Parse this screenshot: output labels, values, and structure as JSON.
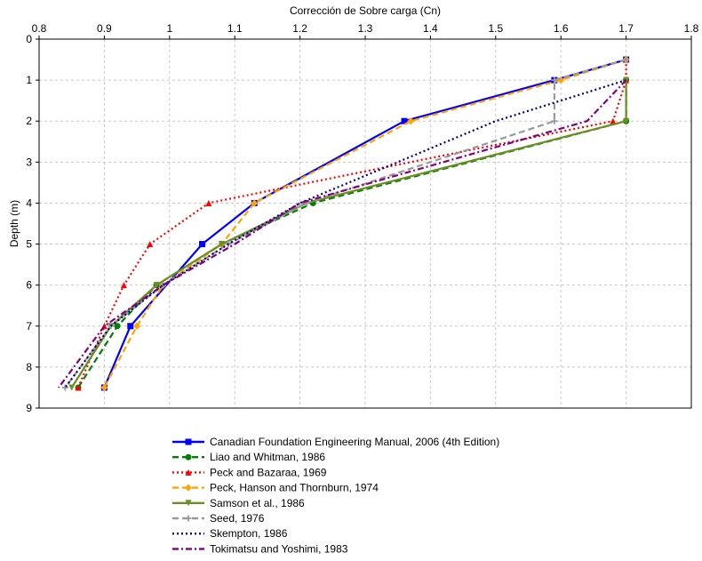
{
  "chart_data": {
    "type": "line",
    "xlabel": "Corrección de Sobre carga (Cn)",
    "ylabel": "Depth (m)",
    "xlim": [
      0.8,
      1.8
    ],
    "ylim": [
      0,
      9
    ],
    "x_axis_position": "top",
    "y_axis_inverted": true,
    "grid": true,
    "legend_position": "bottom",
    "xticks": [
      "0.8",
      "0.9",
      "1",
      "1.1",
      "1.2",
      "1.3",
      "1.4",
      "1.5",
      "1.6",
      "1.7",
      "1.8"
    ],
    "yticks": [
      "0",
      "1",
      "2",
      "3",
      "4",
      "5",
      "6",
      "7",
      "8",
      "9"
    ],
    "series": [
      {
        "name": "Canadian Foundation Engineering Manual, 2006 (4th Edition)",
        "color": "#0000ff",
        "dash": "solid",
        "marker": "square",
        "points": [
          [
            1.7,
            0.5
          ],
          [
            1.59,
            1.0
          ],
          [
            1.36,
            2.0
          ],
          [
            1.13,
            4.0
          ],
          [
            1.05,
            5.0
          ],
          [
            0.94,
            7.0
          ],
          [
            0.9,
            8.5
          ]
        ]
      },
      {
        "name": "Liao and Whitman, 1986",
        "color": "#008000",
        "dash": "dash",
        "marker": "circle",
        "points": [
          [
            1.7,
            1.0
          ],
          [
            1.7,
            2.0
          ],
          [
            1.22,
            4.0
          ],
          [
            1.08,
            5.0
          ],
          [
            0.98,
            6.0
          ],
          [
            0.92,
            7.0
          ],
          [
            0.86,
            8.5
          ]
        ]
      },
      {
        "name": "Peck and Bazaraa, 1969",
        "color": "#ff0000",
        "dash": "dot",
        "marker": "triangle",
        "points": [
          [
            1.7,
            0.5
          ],
          [
            1.7,
            1.0
          ],
          [
            1.68,
            2.0
          ],
          [
            1.06,
            4.0
          ],
          [
            0.97,
            5.0
          ],
          [
            0.93,
            6.0
          ],
          [
            0.9,
            7.0
          ],
          [
            0.86,
            8.5
          ]
        ]
      },
      {
        "name": "Peck, Hanson and Thornburn, 1974",
        "color": "#ffa500",
        "dash": "dash",
        "marker": "diamond",
        "points": [
          [
            1.7,
            0.5
          ],
          [
            1.6,
            1.0
          ],
          [
            1.37,
            2.0
          ],
          [
            1.13,
            4.0
          ],
          [
            1.08,
            5.0
          ],
          [
            0.99,
            6.0
          ],
          [
            0.95,
            7.0
          ],
          [
            0.9,
            8.5
          ]
        ]
      },
      {
        "name": "Samson et al., 1986",
        "color": "#6b8e23",
        "dash": "solid",
        "marker": "triangle-down",
        "points": [
          [
            1.7,
            1.0
          ],
          [
            1.7,
            2.0
          ],
          [
            1.21,
            4.0
          ],
          [
            1.08,
            5.0
          ],
          [
            0.98,
            6.0
          ],
          [
            0.91,
            7.0
          ],
          [
            0.85,
            8.5
          ]
        ]
      },
      {
        "name": "Seed, 1976",
        "color": "#999999",
        "dash": "dash",
        "marker": "plus",
        "points": [
          [
            1.7,
            0.5
          ],
          [
            1.59,
            1.0
          ],
          [
            1.59,
            2.0
          ],
          [
            1.21,
            4.0
          ],
          [
            1.09,
            5.0
          ],
          [
            0.99,
            6.0
          ],
          [
            0.91,
            7.0
          ],
          [
            0.84,
            8.5
          ]
        ]
      },
      {
        "name": "Skempton, 1986",
        "color": "#000080",
        "dash": "dot",
        "marker": "none",
        "points": [
          [
            1.7,
            1.0
          ],
          [
            1.5,
            2.0
          ],
          [
            1.2,
            4.0
          ],
          [
            1.09,
            5.0
          ],
          [
            0.99,
            6.0
          ],
          [
            0.91,
            7.0
          ],
          [
            0.84,
            8.5
          ]
        ]
      },
      {
        "name": "Tokimatsu and Yoshimi, 1983",
        "color": "#800080",
        "dash": "dashdot",
        "marker": "none",
        "points": [
          [
            1.7,
            1.0
          ],
          [
            1.64,
            2.0
          ],
          [
            1.2,
            4.0
          ],
          [
            1.1,
            5.0
          ],
          [
            0.99,
            6.0
          ],
          [
            0.9,
            7.0
          ],
          [
            0.83,
            8.5
          ]
        ]
      }
    ]
  }
}
